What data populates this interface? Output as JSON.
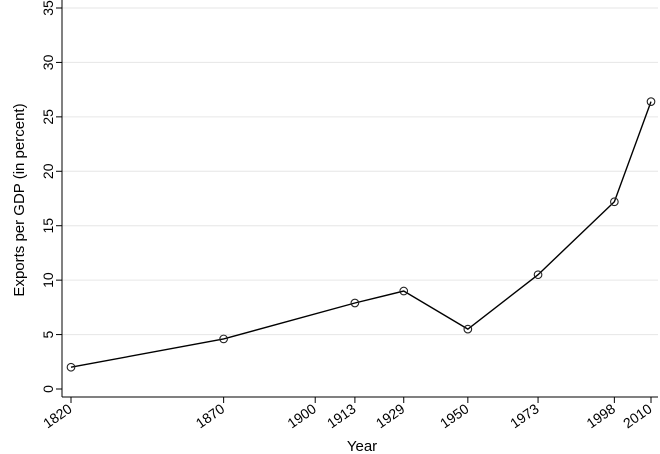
{
  "chart_data": {
    "type": "line",
    "title": "",
    "xlabel": "Year",
    "ylabel": "Exports per GDP (in percent)",
    "x": [
      1820,
      1870,
      1913,
      1929,
      1950,
      1973,
      1998,
      2010
    ],
    "series": [
      {
        "values": [
          2.0,
          4.6,
          7.9,
          9.0,
          5.5,
          10.5,
          17.2,
          26.4
        ]
      }
    ],
    "xticks": [
      "1820",
      "1870",
      "1900",
      "1913",
      "1929",
      "1950",
      "1973",
      "1998",
      "2010"
    ],
    "yticks": [
      "0",
      "5",
      "10",
      "15",
      "20",
      "25",
      "30",
      "35"
    ],
    "xlim": [
      1820,
      2010
    ],
    "ylim": [
      0,
      35
    ],
    "grid": true,
    "legend": "none",
    "colors": {
      "line": "#000000",
      "marker": "#222222",
      "grid": "#e6e6e6"
    }
  }
}
